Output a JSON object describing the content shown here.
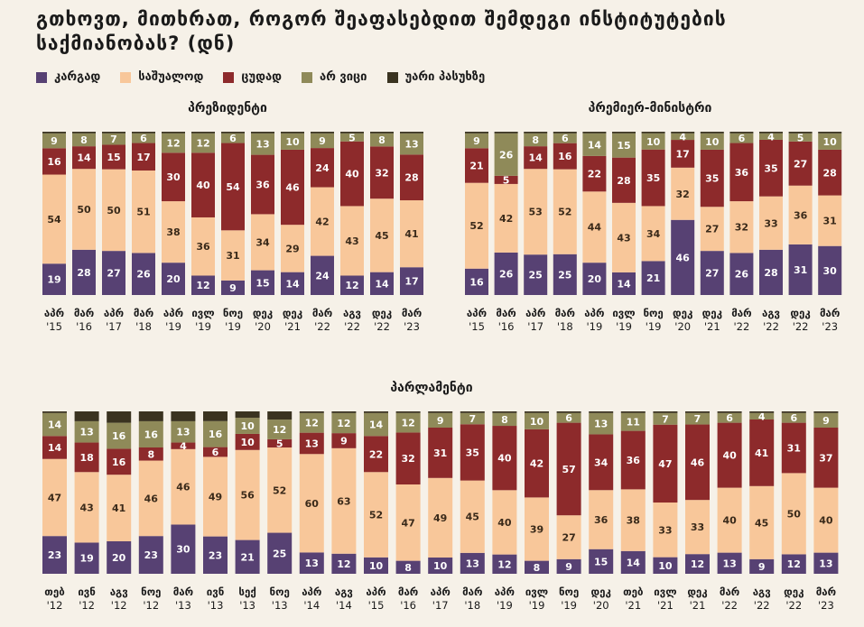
{
  "title": "გთხოვთ, მითხრათ, როგორ შეაფასებდით შემდეგი ინსტიტუტების საქმიანობას? (დნ)",
  "legend": [
    {
      "label": "კარგად",
      "color": "#574173"
    },
    {
      "label": "საშუალოდ",
      "color": "#f8c79a"
    },
    {
      "label": "ცუდად",
      "color": "#8d2a2b"
    },
    {
      "label": "არ ვიცი",
      "color": "#8f8a59"
    },
    {
      "label": "უარი პასუხზე",
      "color": "#3a3320"
    }
  ],
  "chart_data": [
    {
      "type": "bar",
      "stacked": true,
      "title": "პრეზიდენტი",
      "categories": [
        [
          "აპრ",
          "'15"
        ],
        [
          "მარ",
          "'16"
        ],
        [
          "აპრ",
          "'17"
        ],
        [
          "მარ",
          "'18"
        ],
        [
          "აპრ",
          "'19"
        ],
        [
          "ივლ",
          "'19"
        ],
        [
          "ნოე",
          "'19"
        ],
        [
          "დეკ",
          "'20"
        ],
        [
          "დეკ",
          "'21"
        ],
        [
          "მარ",
          "'22"
        ],
        [
          "აგვ",
          "'22"
        ],
        [
          "დეკ",
          "'22"
        ],
        [
          "მარ",
          "'23"
        ]
      ],
      "series": [
        {
          "name": "კარგად",
          "values": [
            19,
            28,
            27,
            26,
            20,
            12,
            9,
            15,
            14,
            24,
            12,
            14,
            17
          ]
        },
        {
          "name": "საშუალოდ",
          "values": [
            54,
            50,
            50,
            51,
            38,
            36,
            31,
            34,
            29,
            42,
            43,
            45,
            41
          ]
        },
        {
          "name": "ცუდად",
          "values": [
            16,
            14,
            15,
            17,
            30,
            40,
            54,
            36,
            46,
            24,
            40,
            32,
            28
          ]
        },
        {
          "name": "არ ვიცი",
          "values": [
            9,
            8,
            7,
            6,
            12,
            12,
            6,
            13,
            10,
            9,
            5,
            8,
            13
          ]
        },
        {
          "name": "უარი პასუხზე",
          "values": [
            1,
            1,
            1,
            1,
            1,
            1,
            1,
            1,
            1,
            1,
            1,
            1,
            1
          ]
        }
      ]
    },
    {
      "type": "bar",
      "stacked": true,
      "title": "პრემიერ-მინისტრი",
      "categories": [
        [
          "აპრ",
          "'15"
        ],
        [
          "მარ",
          "'16"
        ],
        [
          "აპრ",
          "'17"
        ],
        [
          "მარ",
          "'18"
        ],
        [
          "აპრ",
          "'19"
        ],
        [
          "ივლ",
          "'19"
        ],
        [
          "ნოე",
          "'19"
        ],
        [
          "დეკ",
          "'20"
        ],
        [
          "დეკ",
          "'21"
        ],
        [
          "მარ",
          "'22"
        ],
        [
          "აგვ",
          "'22"
        ],
        [
          "დეკ",
          "'22"
        ],
        [
          "მარ",
          "'23"
        ]
      ],
      "series": [
        {
          "name": "კარგად",
          "values": [
            16,
            26,
            25,
            25,
            20,
            14,
            21,
            46,
            27,
            26,
            28,
            31,
            30
          ]
        },
        {
          "name": "საშუალოდ",
          "values": [
            52,
            42,
            53,
            52,
            44,
            43,
            34,
            32,
            27,
            32,
            33,
            36,
            31
          ]
        },
        {
          "name": "ცუდად",
          "values": [
            21,
            5,
            14,
            16,
            22,
            28,
            35,
            17,
            35,
            36,
            35,
            27,
            28
          ]
        },
        {
          "name": "არ ვიცი",
          "values": [
            9,
            26,
            8,
            6,
            14,
            15,
            10,
            4,
            10,
            6,
            4,
            5,
            10
          ]
        },
        {
          "name": "უარი პასუხზე",
          "values": [
            1,
            1,
            1,
            1,
            1,
            1,
            1,
            1,
            1,
            1,
            1,
            1,
            1
          ]
        }
      ]
    },
    {
      "type": "bar",
      "stacked": true,
      "title": "პარლამენტი",
      "categories": [
        [
          "თებ",
          "'12"
        ],
        [
          "ივნ",
          "'12"
        ],
        [
          "აგვ",
          "'12"
        ],
        [
          "ნოე",
          "'12"
        ],
        [
          "მარ",
          "'13"
        ],
        [
          "ივნ",
          "'13"
        ],
        [
          "სექ",
          "'13"
        ],
        [
          "ნოე",
          "'13"
        ],
        [
          "აპრ",
          "'14"
        ],
        [
          "აგვ",
          "'14"
        ],
        [
          "აპრ",
          "'15"
        ],
        [
          "მარ",
          "'16"
        ],
        [
          "აპრ",
          "'17"
        ],
        [
          "მარ",
          "'18"
        ],
        [
          "აპრ",
          "'19"
        ],
        [
          "ივლ",
          "'19"
        ],
        [
          "ნოე",
          "'19"
        ],
        [
          "დეკ",
          "'20"
        ],
        [
          "თებ",
          "'21"
        ],
        [
          "ივლ",
          "'21"
        ],
        [
          "დეკ",
          "'21"
        ],
        [
          "მარ",
          "'22"
        ],
        [
          "აგვ",
          "'22"
        ],
        [
          "დეკ",
          "'22"
        ],
        [
          "მარ",
          "'23"
        ]
      ],
      "series": [
        {
          "name": "კარგად",
          "values": [
            23,
            19,
            20,
            23,
            30,
            23,
            21,
            25,
            13,
            12,
            10,
            8,
            10,
            13,
            12,
            8,
            9,
            15,
            14,
            10,
            12,
            13,
            9,
            12,
            13
          ]
        },
        {
          "name": "საშუალოდ",
          "values": [
            47,
            43,
            41,
            46,
            46,
            49,
            56,
            52,
            60,
            63,
            52,
            47,
            49,
            45,
            40,
            39,
            27,
            36,
            38,
            33,
            33,
            40,
            45,
            50,
            40
          ]
        },
        {
          "name": "ცუდად",
          "values": [
            14,
            18,
            16,
            8,
            4,
            6,
            10,
            5,
            13,
            9,
            22,
            32,
            31,
            35,
            40,
            42,
            57,
            34,
            36,
            47,
            46,
            40,
            41,
            31,
            37
          ]
        },
        {
          "name": "არ ვიცი",
          "values": [
            14,
            13,
            16,
            16,
            13,
            16,
            10,
            12,
            12,
            12,
            14,
            12,
            9,
            7,
            8,
            10,
            6,
            13,
            11,
            7,
            7,
            6,
            4,
            6,
            9
          ]
        },
        {
          "name": "უარი პასუხზე",
          "values": [
            1,
            6,
            7,
            6,
            6,
            6,
            4,
            5,
            1,
            1,
            1,
            1,
            1,
            1,
            1,
            1,
            1,
            1,
            1,
            1,
            1,
            1,
            1,
            1,
            1
          ]
        }
      ]
    }
  ]
}
